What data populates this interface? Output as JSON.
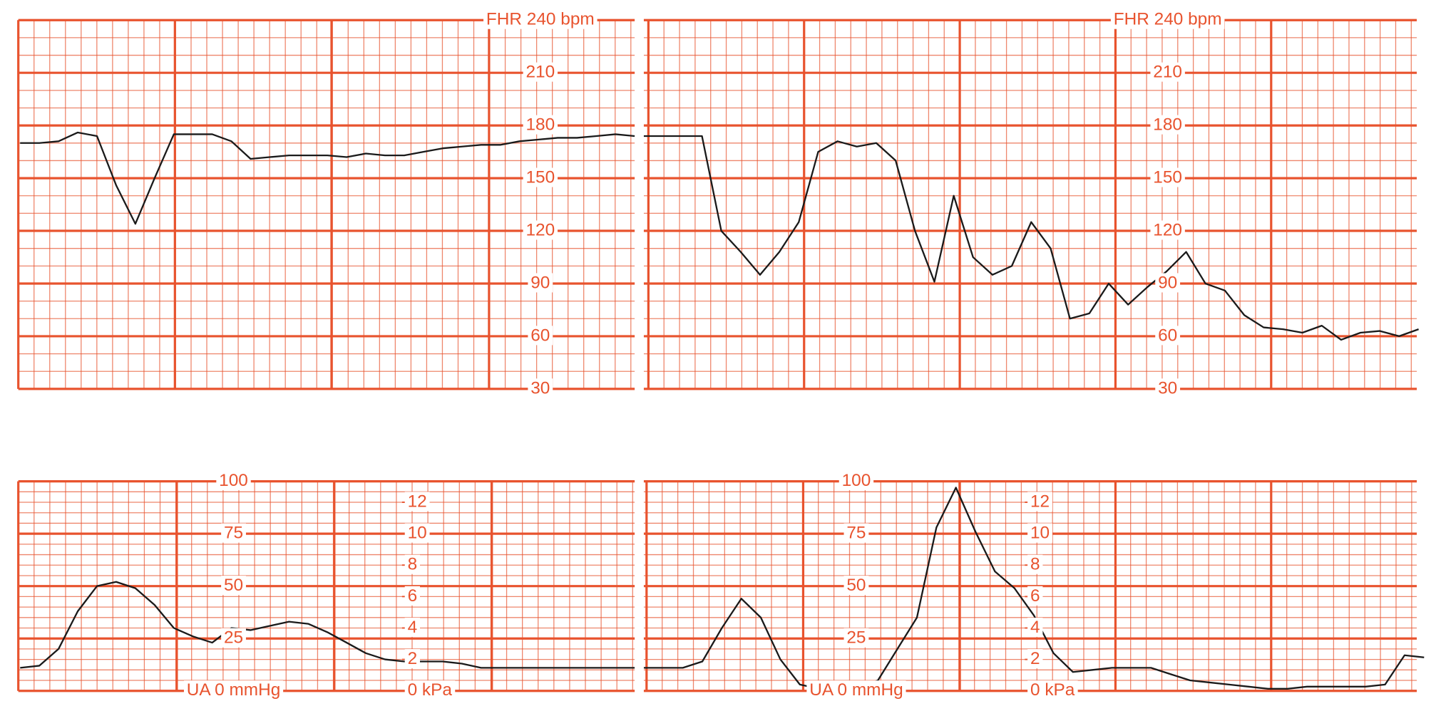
{
  "chart_data": [
    {
      "type": "line",
      "grid": true,
      "grid_color": "#e8532e",
      "ylim": [
        30,
        240
      ],
      "yticks": [
        30,
        60,
        90,
        120,
        150,
        180,
        210,
        {
          "value": 240,
          "label": "FHR 240 bpm"
        }
      ],
      "series": [
        {
          "color": "#1a1a1a",
          "values": [
            170,
            170,
            171,
            176,
            174,
            146,
            124,
            150,
            175,
            175,
            175,
            171,
            161,
            162,
            163,
            163,
            163,
            162,
            164,
            163,
            163,
            165,
            167,
            168,
            169,
            169,
            171,
            172,
            173,
            173,
            174,
            175,
            174
          ]
        }
      ]
    },
    {
      "type": "line",
      "grid": true,
      "grid_color": "#e8532e",
      "ylim": [
        30,
        240
      ],
      "yticks": [
        30,
        60,
        90,
        120,
        150,
        180,
        210,
        {
          "value": 240,
          "label": "FHR 240 bpm"
        }
      ],
      "series": [
        {
          "color": "#1a1a1a",
          "values": [
            174,
            174,
            174,
            174,
            120,
            108,
            95,
            108,
            125,
            165,
            171,
            168,
            170,
            160,
            120,
            91,
            140,
            105,
            95,
            100,
            125,
            110,
            70,
            73,
            90,
            78,
            88,
            97,
            108,
            90,
            86,
            72,
            65,
            64,
            62,
            66,
            58,
            62,
            63,
            60,
            64
          ]
        }
      ]
    },
    {
      "type": "line",
      "grid": true,
      "grid_color": "#e8532e",
      "ylim": [
        0,
        100
      ],
      "yticks": [
        {
          "value": 0,
          "label": "UA 0 mmHg"
        },
        25,
        50,
        75,
        100
      ],
      "y2lim": [
        0,
        13.33
      ],
      "y2ticks": [
        {
          "value": 0,
          "label": "0 kPa"
        },
        2,
        4,
        6,
        8,
        10,
        12
      ],
      "series": [
        {
          "color": "#1a1a1a",
          "values": [
            11,
            12,
            20,
            38,
            50,
            52,
            49,
            41,
            30,
            26,
            23,
            30,
            29,
            31,
            33,
            32,
            28,
            23,
            18,
            15,
            14,
            14,
            14,
            13,
            11,
            11,
            11,
            11,
            11,
            11,
            11,
            11,
            11
          ]
        }
      ]
    },
    {
      "type": "line",
      "grid": true,
      "grid_color": "#e8532e",
      "ylim": [
        0,
        100
      ],
      "yticks": [
        {
          "value": 0,
          "label": "UA 0 mmHg"
        },
        25,
        50,
        75,
        100
      ],
      "y2lim": [
        0,
        13.33
      ],
      "y2ticks": [
        {
          "value": 0,
          "label": "0 kPa"
        },
        2,
        4,
        6,
        8,
        10,
        12
      ],
      "series": [
        {
          "color": "#1a1a1a",
          "values": [
            11,
            11,
            11,
            14,
            30,
            44,
            35,
            15,
            3,
            1,
            1,
            1,
            5,
            20,
            35,
            78,
            97,
            76,
            57,
            49,
            36,
            18,
            9,
            10,
            11,
            11,
            11,
            8,
            5,
            4,
            3,
            2,
            1,
            1,
            2,
            2,
            2,
            2,
            3,
            17,
            16
          ]
        }
      ]
    }
  ]
}
